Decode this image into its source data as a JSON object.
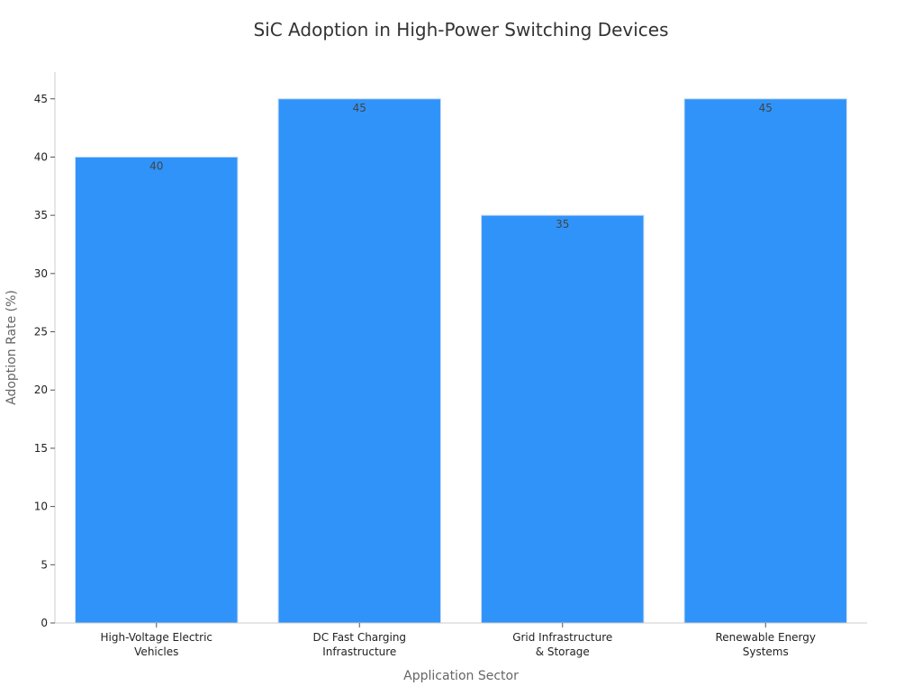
{
  "chart_data": {
    "type": "bar",
    "title": "SiC Adoption in High-Power Switching Devices",
    "xlabel": "Application Sector",
    "ylabel": "Adoption Rate (%)",
    "categories": [
      [
        "High-Voltage Electric",
        "Vehicles"
      ],
      [
        "DC Fast Charging",
        "Infrastructure"
      ],
      [
        "Grid Infrastructure",
        "& Storage"
      ],
      [
        "Renewable Energy",
        "Systems"
      ]
    ],
    "values": [
      40,
      45,
      35,
      45
    ],
    "data_labels": [
      "40",
      "45",
      "35",
      "45"
    ],
    "ylim": [
      0,
      47.3
    ],
    "yticks": [
      0,
      5,
      10,
      15,
      20,
      25,
      30,
      35,
      40,
      45
    ],
    "grid": false,
    "legend": "none",
    "colors": {
      "bar": "#2f93fa",
      "bar_edge": "#c9dbf2",
      "axis": "#cccccc",
      "tick_text": "#222222",
      "label_text": "#666666",
      "title_text": "#333333",
      "data_label_text": "#444444"
    }
  }
}
